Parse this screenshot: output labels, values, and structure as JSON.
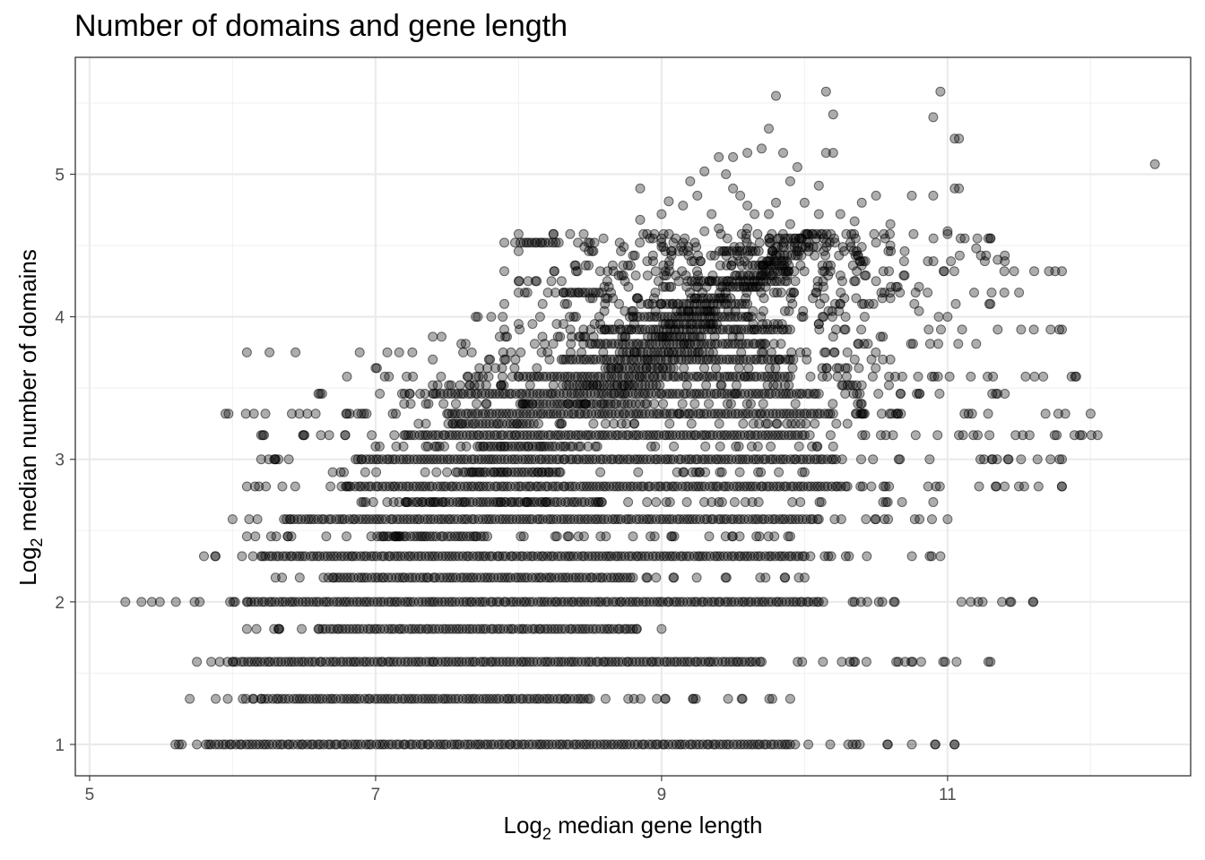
{
  "chart_data": {
    "type": "scatter",
    "title": "Number of domains and gene length",
    "xlabel_main": "Log",
    "xlabel_sub": "2",
    "xlabel_rest": " median gene length",
    "ylabel_main": "Log",
    "ylabel_sub": "2",
    "ylabel_rest": " median number of domains",
    "xlim": [
      4.9,
      12.7
    ],
    "ylim": [
      0.78,
      5.82
    ],
    "x_ticks": [
      5,
      7,
      9,
      11
    ],
    "y_ticks": [
      1,
      2,
      3,
      4,
      5
    ],
    "grid": true,
    "point_color": "#000000",
    "point_fill_opacity": 0.32,
    "row_levels": [
      1,
      1.32,
      1.58,
      1.81,
      2,
      2.17,
      2.32,
      2.46,
      2.58,
      2.7,
      2.81,
      2.91,
      3,
      3.09,
      3.17,
      3.25,
      3.32,
      3.39,
      3.46,
      3.52,
      3.58,
      3.64,
      3.7,
      3.75,
      3.81,
      3.86,
      3.91,
      3.95,
      4,
      4.04,
      4.09,
      4.13,
      4.17,
      4.21,
      4.25,
      4.29,
      4.32,
      4.36,
      4.39,
      4.43,
      4.46,
      4.49,
      4.52,
      4.55,
      4.58
    ],
    "rows": [
      {
        "y": 1,
        "dense": [
          5.8,
          9.9
        ],
        "sparse": [
          [
            5.6,
            5.75
          ],
          [
            9.9,
            11.05
          ]
        ]
      },
      {
        "y": 1.32,
        "dense": [
          6.2,
          8.5
        ],
        "sparse": [
          [
            5.7,
            6.2
          ],
          [
            8.5,
            9.9
          ]
        ]
      },
      {
        "y": 1.58,
        "dense": [
          6.0,
          9.7
        ],
        "sparse": [
          [
            5.75,
            6.0
          ],
          [
            9.7,
            11.3
          ]
        ]
      },
      {
        "y": 1.81,
        "dense": [
          6.6,
          8.8
        ],
        "sparse": [
          [
            6.1,
            6.6
          ],
          [
            8.8,
            9.0
          ]
        ]
      },
      {
        "y": 2,
        "dense": [
          6.1,
          10.1
        ],
        "sparse": [
          [
            5.25,
            6.1
          ],
          [
            10.1,
            11.6
          ]
        ]
      },
      {
        "y": 2.17,
        "dense": [
          6.7,
          8.8
        ],
        "sparse": [
          [
            6.3,
            6.7
          ],
          [
            8.8,
            10.0
          ]
        ]
      },
      {
        "y": 2.32,
        "dense": [
          6.2,
          10.0
        ],
        "sparse": [
          [
            5.8,
            6.2
          ],
          [
            10.0,
            10.95
          ]
        ]
      },
      {
        "y": 2.46,
        "dense": [
          7.0,
          7.8
        ],
        "sparse": [
          [
            6.1,
            9.9
          ]
        ]
      },
      {
        "y": 2.58,
        "dense": [
          6.4,
          10.1
        ],
        "sparse": [
          [
            6.0,
            6.4
          ],
          [
            10.1,
            11.0
          ]
        ]
      },
      {
        "y": 2.7,
        "dense": [
          7.2,
          8.6
        ],
        "sparse": [
          [
            6.9,
            10.9
          ]
        ]
      },
      {
        "y": 2.81,
        "dense": [
          6.8,
          10.3
        ],
        "sparse": [
          [
            6.1,
            6.8
          ],
          [
            10.3,
            11.8
          ]
        ]
      },
      {
        "y": 2.91,
        "dense": [
          7.6,
          8.3
        ],
        "sparse": [
          [
            6.7,
            10.0
          ]
        ]
      },
      {
        "y": 3,
        "dense": [
          6.9,
          10.2
        ],
        "sparse": [
          [
            6.2,
            6.9
          ],
          [
            10.2,
            11.8
          ]
        ]
      },
      {
        "y": 3.09,
        "dense": [
          7.7,
          8.4
        ],
        "sparse": [
          [
            7.0,
            10.2
          ]
        ]
      },
      {
        "y": 3.17,
        "dense": [
          7.2,
          10.0
        ],
        "sparse": [
          [
            6.2,
            7.2
          ],
          [
            10.0,
            12.05
          ]
        ]
      },
      {
        "y": 3.25,
        "dense": [
          7.5,
          8.1
        ],
        "sparse": [
          [
            7.3,
            10.3
          ]
        ]
      },
      {
        "y": 3.32,
        "dense": [
          7.5,
          10.2
        ],
        "sparse": [
          [
            5.95,
            7.5
          ],
          [
            10.2,
            12.0
          ]
        ]
      },
      {
        "y": 3.39,
        "dense": [
          8.0,
          8.8
        ],
        "sparse": [
          [
            7.2,
            10.4
          ]
        ]
      },
      {
        "y": 3.46,
        "dense": [
          7.4,
          10.1
        ],
        "sparse": [
          [
            6.6,
            7.4
          ],
          [
            10.1,
            11.4
          ]
        ]
      },
      {
        "y": 3.52,
        "dense": [
          8.3,
          9.0
        ],
        "sparse": [
          [
            7.4,
            10.4
          ]
        ]
      },
      {
        "y": 3.58,
        "dense": [
          8.0,
          9.9
        ],
        "sparse": [
          [
            6.8,
            8.0
          ],
          [
            9.9,
            11.9
          ]
        ]
      },
      {
        "y": 3.64,
        "dense": [
          8.6,
          9.1
        ],
        "sparse": [
          [
            7.0,
            10.3
          ]
        ]
      },
      {
        "y": 3.7,
        "dense": [
          8.3,
          9.9
        ],
        "sparse": [
          [
            7.4,
            8.3
          ],
          [
            9.9,
            10.6
          ]
        ]
      },
      {
        "y": 3.75,
        "dense": [
          8.7,
          9.3
        ],
        "sparse": [
          [
            6.1,
            10.3
          ]
        ]
      },
      {
        "y": 3.81,
        "dense": [
          8.5,
          9.7
        ],
        "sparse": [
          [
            7.6,
            8.5
          ],
          [
            9.7,
            11.2
          ]
        ]
      },
      {
        "y": 3.86,
        "dense": [
          8.9,
          9.3
        ],
        "sparse": [
          [
            7.4,
            10.2
          ]
        ]
      },
      {
        "y": 3.91,
        "dense": [
          8.6,
          9.9
        ],
        "sparse": [
          [
            7.9,
            8.6
          ],
          [
            9.9,
            11.8
          ]
        ]
      },
      {
        "y": 3.95,
        "dense": [
          9.0,
          9.4
        ],
        "sparse": [
          [
            8.0,
            10.1
          ]
        ]
      },
      {
        "y": 4,
        "dense": [
          8.8,
          9.6
        ],
        "sparse": [
          [
            7.7,
            8.8
          ],
          [
            9.6,
            11.0
          ]
        ]
      },
      {
        "y": 4.04,
        "dense": [
          9.1,
          9.4
        ],
        "sparse": [
          [
            8.6,
            10.8
          ]
        ]
      },
      {
        "y": 4.09,
        "dense": [
          9.0,
          9.6
        ],
        "sparse": [
          [
            7.9,
            9.0
          ],
          [
            9.6,
            11.3
          ]
        ]
      },
      {
        "y": 4.13,
        "dense": [
          9.2,
          9.5
        ],
        "sparse": [
          [
            8.5,
            10.6
          ]
        ]
      },
      {
        "y": 4.17,
        "dense": [
          8.3,
          8.6
        ],
        "sparse": [
          [
            8.0,
            11.5
          ]
        ]
      },
      {
        "y": 4.21,
        "dense": [
          9.4,
          9.7
        ],
        "sparse": [
          [
            8.6,
            10.8
          ]
        ]
      },
      {
        "y": 4.25,
        "dense": [
          9.2,
          9.9
        ],
        "sparse": [
          [
            8.0,
            10.5
          ]
        ]
      },
      {
        "y": 4.29,
        "dense": [
          9.5,
          9.8
        ],
        "sparse": [
          [
            8.7,
            10.7
          ]
        ]
      },
      {
        "y": 4.32,
        "dense": [
          9.7,
          9.9
        ],
        "sparse": [
          [
            7.9,
            11.8
          ]
        ]
      },
      {
        "y": 4.36,
        "dense": [
          9.6,
          9.9
        ],
        "sparse": [
          [
            8.4,
            10.4
          ]
        ]
      },
      {
        "y": 4.39,
        "dense": [
          9.7,
          9.9
        ],
        "sparse": [
          [
            8.9,
            11.4
          ]
        ]
      },
      {
        "y": 4.43,
        "dense": [
          9.8,
          10.0
        ],
        "sparse": [
          [
            8.8,
            11.4
          ]
        ]
      },
      {
        "y": 4.46,
        "dense": [
          9.4,
          9.7
        ],
        "sparse": [
          [
            8.0,
            10.7
          ]
        ]
      },
      {
        "y": 4.49,
        "dense": [
          9.9,
          10.1
        ],
        "sparse": [
          [
            9.0,
            10.4
          ]
        ]
      },
      {
        "y": 4.52,
        "dense": [
          8.0,
          8.3
        ],
        "sparse": [
          [
            7.9,
            10.5
          ]
        ]
      },
      {
        "y": 4.55,
        "dense": [
          9.8,
          10.0
        ],
        "sparse": [
          [
            9.0,
            11.3
          ]
        ]
      },
      {
        "y": 4.58,
        "dense": [
          10.0,
          10.2
        ],
        "sparse": [
          [
            8.0,
            11.0
          ]
        ]
      }
    ],
    "extra_points": [
      [
        9.8,
        5.55
      ],
      [
        10.15,
        5.58
      ],
      [
        10.95,
        5.58
      ],
      [
        10.9,
        5.4
      ],
      [
        10.2,
        5.42
      ],
      [
        9.75,
        5.32
      ],
      [
        11.05,
        5.25
      ],
      [
        11.08,
        5.25
      ],
      [
        9.6,
        5.15
      ],
      [
        9.5,
        5.12
      ],
      [
        9.7,
        5.18
      ],
      [
        9.85,
        5.15
      ],
      [
        10.15,
        5.15
      ],
      [
        10.2,
        5.15
      ],
      [
        9.95,
        5.05
      ],
      [
        9.4,
        5.12
      ],
      [
        9.3,
        5.02
      ],
      [
        9.9,
        4.95
      ],
      [
        9.2,
        4.95
      ],
      [
        9.25,
        4.85
      ],
      [
        9.5,
        4.9
      ],
      [
        9.55,
        4.85
      ],
      [
        9.6,
        4.78
      ],
      [
        9.8,
        4.8
      ],
      [
        10.0,
        4.8
      ],
      [
        10.1,
        4.92
      ],
      [
        9.45,
        5.0
      ],
      [
        8.85,
        4.9
      ],
      [
        9.05,
        4.81
      ],
      [
        9.15,
        4.78
      ],
      [
        11.05,
        4.9
      ],
      [
        11.08,
        4.9
      ],
      [
        10.5,
        4.85
      ],
      [
        10.75,
        4.85
      ],
      [
        10.9,
        4.85
      ],
      [
        10.4,
        4.8
      ],
      [
        10.25,
        4.72
      ],
      [
        10.35,
        4.67
      ],
      [
        10.1,
        4.72
      ],
      [
        9.75,
        4.72
      ],
      [
        9.9,
        4.65
      ],
      [
        9.65,
        4.72
      ],
      [
        9.35,
        4.72
      ],
      [
        9.4,
        4.62
      ],
      [
        9.6,
        4.62
      ],
      [
        10.6,
        4.65
      ],
      [
        11.0,
        4.6
      ],
      [
        12.45,
        5.07
      ],
      [
        9.0,
        4.72
      ],
      [
        9.3,
        4.6
      ],
      [
        8.85,
        4.68
      ],
      [
        10.6,
        4.5
      ],
      [
        11.3,
        4.55
      ],
      [
        11.35,
        4.4
      ],
      [
        11.2,
        4.48
      ],
      [
        10.05,
        4.58
      ],
      [
        9.15,
        4.52
      ]
    ]
  }
}
